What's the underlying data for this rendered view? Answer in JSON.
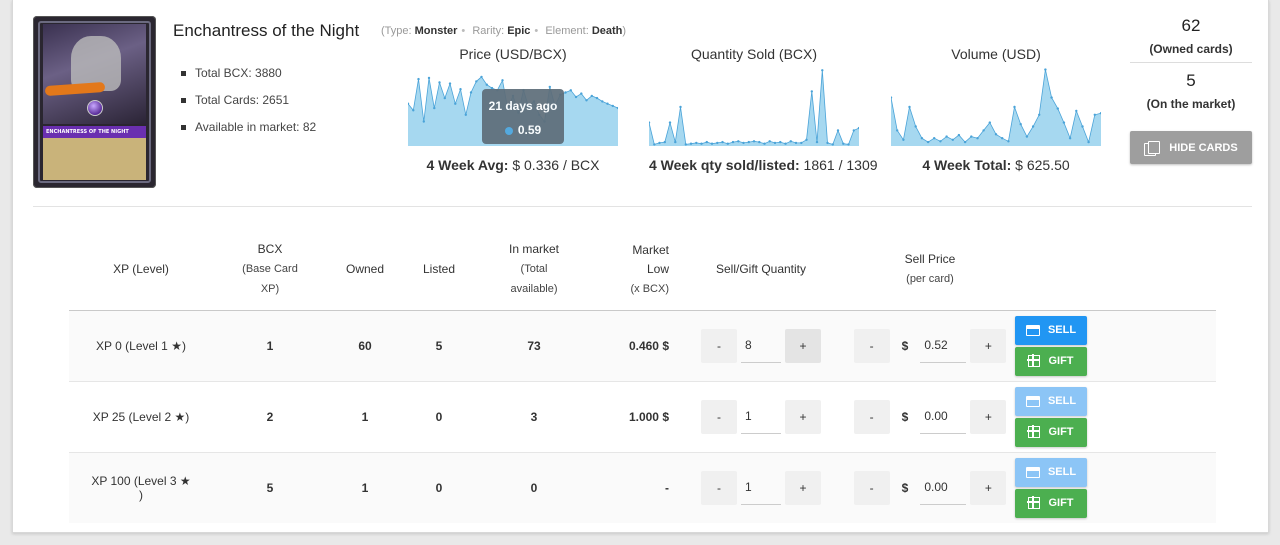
{
  "card": {
    "name": "Enchantress of the Night",
    "art_name": "ENCHANTRESS OF THE NIGHT",
    "meta": {
      "type_label": "(Type:",
      "type_value": "Monster",
      "rarity_label": "Rarity:",
      "rarity_value": "Epic",
      "element_label": "Element:",
      "element_value": "Death",
      "close_paren": ")"
    }
  },
  "stats": [
    "Total BCX: 3880",
    "Total Cards: 2651",
    "Available in market: 82"
  ],
  "charts": {
    "price": {
      "title": "Price (USD/BCX)",
      "footer_label": "4 Week Avg:",
      "footer_value": " $ 0.336 / BCX"
    },
    "qty": {
      "title": "Quantity Sold (BCX)",
      "footer_label": "4 Week qty sold/listed:",
      "footer_value": " 1861 / 1309"
    },
    "volume": {
      "title": "Volume (USD)",
      "footer_label": "4 Week Total:",
      "footer_value": " $ 625.50"
    }
  },
  "tooltip": {
    "title": "21 days ago",
    "value": "0.59"
  },
  "chart_data": [
    {
      "type": "area",
      "title": "Price (USD/BCX)",
      "color": "#a6d8f0",
      "line_color": "#4aa3d8",
      "ylim": [
        0,
        0.7
      ],
      "values": [
        0.38,
        0.32,
        0.6,
        0.22,
        0.61,
        0.34,
        0.57,
        0.43,
        0.56,
        0.38,
        0.51,
        0.28,
        0.48,
        0.58,
        0.62,
        0.55,
        0.52,
        0.5,
        0.59,
        0.33,
        0.45,
        0.3,
        0.5,
        0.35,
        0.4,
        0.28,
        0.22,
        0.53,
        0.36,
        0.46,
        0.48,
        0.5,
        0.44,
        0.47,
        0.41,
        0.45,
        0.43,
        0.4,
        0.38,
        0.36,
        0.34
      ]
    },
    {
      "type": "area",
      "title": "Quantity Sold (BCX)",
      "color": "#a6d8f0",
      "line_color": "#4aa3d8",
      "ylim": [
        0,
        1
      ],
      "values": [
        0.3,
        0.02,
        0.04,
        0.05,
        0.3,
        0.05,
        0.5,
        0.02,
        0.03,
        0.04,
        0.03,
        0.05,
        0.03,
        0.04,
        0.05,
        0.03,
        0.05,
        0.06,
        0.04,
        0.05,
        0.06,
        0.05,
        0.03,
        0.06,
        0.04,
        0.05,
        0.03,
        0.06,
        0.04,
        0.04,
        0.08,
        0.7,
        0.05,
        0.97,
        0.04,
        0.02,
        0.2,
        0.03,
        0.02,
        0.2,
        0.23
      ]
    },
    {
      "type": "area",
      "title": "Volume (USD)",
      "color": "#a6d8f0",
      "line_color": "#4aa3d8",
      "ylim": [
        0,
        1
      ],
      "values": [
        0.62,
        0.2,
        0.08,
        0.5,
        0.25,
        0.1,
        0.05,
        0.1,
        0.06,
        0.12,
        0.08,
        0.14,
        0.05,
        0.12,
        0.1,
        0.2,
        0.3,
        0.15,
        0.1,
        0.06,
        0.5,
        0.28,
        0.12,
        0.25,
        0.4,
        0.98,
        0.62,
        0.48,
        0.3,
        0.1,
        0.45,
        0.25,
        0.05,
        0.4,
        0.42
      ]
    }
  ],
  "owned": {
    "count": "62",
    "count_label": "(Owned cards)",
    "market": "5",
    "market_label": "(On the market)"
  },
  "hide_button": "HIDE CARDS",
  "table": {
    "headers": {
      "xp": "XP (Level)",
      "bcx": "BCX",
      "bcx_sub1": "(Base Card",
      "bcx_sub2": "XP)",
      "owned": "Owned",
      "listed": "Listed",
      "in_market": "In market",
      "in_market_sub1": "(Total",
      "in_market_sub2": "available)",
      "market_low1": "Market",
      "market_low2": "Low",
      "market_low3": "(x BCX)",
      "qty": "Sell/Gift Quantity",
      "price": "Sell Price",
      "price_sub": "(per card)"
    },
    "rows": [
      {
        "xp": "XP 0 (Level 1",
        "xp_end": ")",
        "bcx": "1",
        "owned": "60",
        "listed": "5",
        "in_market": "73",
        "low": "0.460 $",
        "qty": "8",
        "price": "0.52"
      },
      {
        "xp": "XP 25 (Level 2",
        "xp_end": ")",
        "bcx": "2",
        "owned": "1",
        "listed": "0",
        "in_market": "3",
        "low": "1.000 $",
        "qty": "1",
        "price": "0.00"
      },
      {
        "xp": "XP 100 (Level 3",
        "xp_end": ")",
        "bcx": "5",
        "owned": "1",
        "listed": "0",
        "in_market": "0",
        "low": "-",
        "qty": "1",
        "price": "0.00"
      }
    ],
    "minus": "-",
    "plus": "+",
    "dollar": "$",
    "star": "★",
    "sell_label": "SELL",
    "gift_label": "GIFT"
  }
}
